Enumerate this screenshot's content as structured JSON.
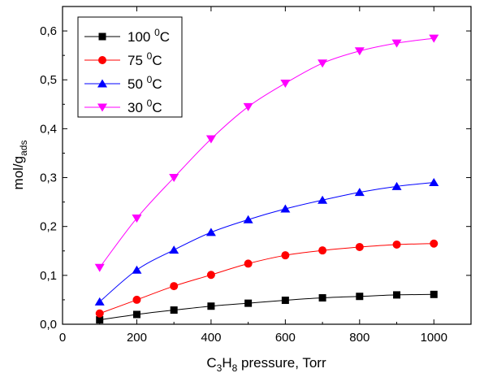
{
  "chart_data": {
    "type": "line",
    "title": "",
    "xlabel": {
      "base1": "C",
      "sub1": "3",
      "base2": "H",
      "sub2": "8",
      "rest": " pressure, Torr"
    },
    "ylabel": {
      "base": "mol/g",
      "sub": "ads"
    },
    "xlim": [
      0,
      1100
    ],
    "ylim": [
      0.0,
      0.65
    ],
    "x_ticks": [
      0,
      200,
      400,
      600,
      800,
      1000
    ],
    "y_ticks": [
      0.0,
      0.1,
      0.2,
      0.3,
      0.4,
      0.5,
      0.6
    ],
    "y_tick_labels": [
      "0,0",
      "0,1",
      "0,2",
      "0,3",
      "0,4",
      "0,5",
      "0,6"
    ],
    "grid": false,
    "legend_position": "top-left",
    "x": [
      100,
      200,
      300,
      400,
      500,
      600,
      700,
      800,
      900,
      1000
    ],
    "series": [
      {
        "name": "100 ⁰C",
        "legend_value": "100",
        "legend_sup": "0",
        "legend_unit": "C",
        "color": "#000000",
        "marker": "square",
        "values": [
          0.009,
          0.02,
          0.029,
          0.037,
          0.043,
          0.049,
          0.054,
          0.057,
          0.06,
          0.061
        ]
      },
      {
        "name": "75 ⁰C",
        "legend_value": "75",
        "legend_sup": "0",
        "legend_unit": "C",
        "color": "#ff0000",
        "marker": "circle",
        "values": [
          0.022,
          0.05,
          0.078,
          0.101,
          0.124,
          0.141,
          0.151,
          0.158,
          0.163,
          0.165
        ]
      },
      {
        "name": "50 ⁰C",
        "legend_value": "50",
        "legend_sup": "0",
        "legend_unit": "C",
        "color": "#0000ff",
        "marker": "triangle-up",
        "values": [
          0.046,
          0.111,
          0.152,
          0.188,
          0.214,
          0.236,
          0.254,
          0.27,
          0.282,
          0.29
        ]
      },
      {
        "name": "30 ⁰C",
        "legend_value": "30",
        "legend_sup": "0",
        "legend_unit": "C",
        "color": "#ff00ff",
        "marker": "triangle-down",
        "values": [
          0.116,
          0.217,
          0.3,
          0.379,
          0.445,
          0.493,
          0.534,
          0.559,
          0.575,
          0.585
        ]
      }
    ]
  }
}
